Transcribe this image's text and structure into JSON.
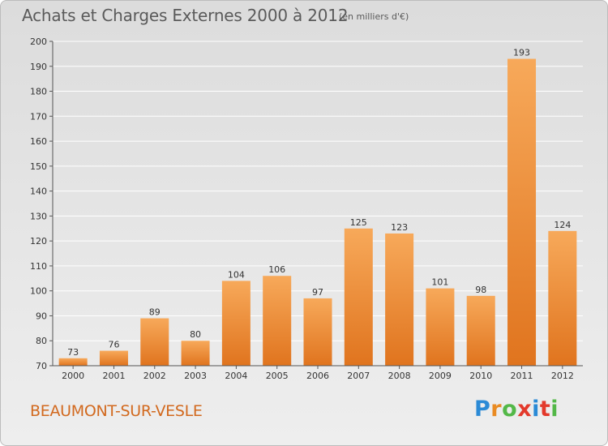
{
  "title": "Achats et Charges Externes 2000 à 2012",
  "unit_note": "(en milliers d'€)",
  "commune": "BEAUMONT-SUR-VESLE",
  "logo": {
    "text": "Proxiti",
    "colors": [
      "#2b8ad6",
      "#e98b23",
      "#53b848",
      "#e3392b",
      "#2b8ad6",
      "#e3392b",
      "#53b848"
    ]
  },
  "chart_data": {
    "type": "bar",
    "title": "Achats et Charges Externes 2000 à 2012",
    "subtitle": "(en milliers d'€)",
    "categories": [
      "2000",
      "2001",
      "2002",
      "2003",
      "2004",
      "2005",
      "2006",
      "2007",
      "2008",
      "2009",
      "2010",
      "2011",
      "2012"
    ],
    "values": [
      73,
      76,
      89,
      80,
      104,
      106,
      97,
      125,
      123,
      101,
      98,
      193,
      124
    ],
    "data_labels": [
      "73",
      "76",
      "89",
      "80",
      "104",
      "106",
      "97",
      "125",
      "123",
      "101",
      "98",
      "193",
      "124"
    ],
    "ylim": [
      70,
      200
    ],
    "yticks": [
      70,
      80,
      90,
      100,
      110,
      120,
      130,
      140,
      150,
      160,
      170,
      180,
      190,
      200
    ],
    "grid": true,
    "legend": "none",
    "colors": {
      "bar_top": "#f7a95a",
      "bar_bottom": "#e0741e",
      "grid": "#ffffff",
      "axis": "#555555",
      "label": "#333333"
    }
  }
}
